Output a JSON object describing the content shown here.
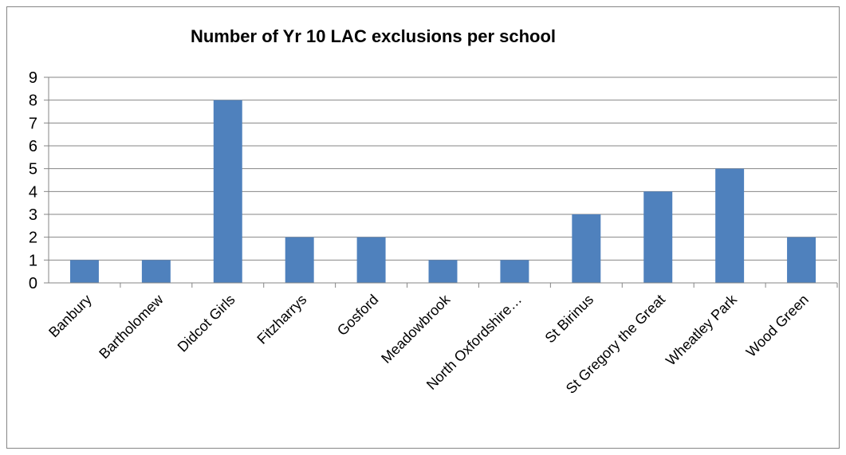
{
  "chart_data": {
    "type": "bar",
    "title": "Number of Yr 10 LAC exclusions per school",
    "xlabel": "",
    "ylabel": "",
    "categories": [
      "Banbury",
      "Bartholomew",
      "Didcot Girls",
      "Fitzharrys",
      "Gosford",
      "Meadowbrook",
      "North Oxfordshire…",
      "St Birinus",
      "St Gregory the Great",
      "Wheatley Park",
      "Wood Green"
    ],
    "values": [
      1,
      1,
      8,
      2,
      2,
      1,
      1,
      3,
      4,
      5,
      2
    ],
    "ylim": [
      0,
      9
    ],
    "yticks": [
      "0",
      "1",
      "2",
      "3",
      "4",
      "5",
      "6",
      "7",
      "8",
      "9"
    ],
    "grid": true,
    "legend": "none",
    "colors": {
      "bar": "#4F81BD",
      "grid": "#868686",
      "axis": "#868686"
    }
  }
}
